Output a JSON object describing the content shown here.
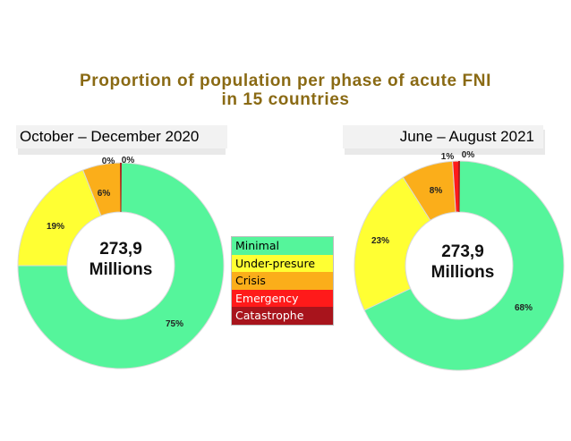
{
  "title_line1": "Proportion of population per phase of acute FNI",
  "title_line2": "in 15 countries",
  "legend": [
    {
      "name": "Minimal",
      "color": "#55f59b",
      "text_color": "#000000"
    },
    {
      "name": "Under-presure",
      "color": "#ffff33",
      "text_color": "#000000"
    },
    {
      "name": "Crisis",
      "color": "#fbae1a",
      "text_color": "#000000"
    },
    {
      "name": "Emergency",
      "color": "#ff1a1a",
      "text_color": "#ffffff"
    },
    {
      "name": "Catastrophe",
      "color": "#a8141c",
      "text_color": "#ffffff"
    }
  ],
  "chart_data": [
    {
      "type": "pie",
      "title": "October – December 2020",
      "center_label_line1": "273,9",
      "center_label_line2": "Millions",
      "categories": [
        "Minimal",
        "Under-presure",
        "Crisis",
        "Emergency",
        "Catastrophe"
      ],
      "values": [
        75,
        19,
        6,
        0,
        0
      ],
      "labels": [
        "75%",
        "19%",
        "6%",
        "0%",
        "0%"
      ]
    },
    {
      "type": "pie",
      "title": "June – August 2021",
      "center_label_line1": "273,9",
      "center_label_line2": "Millions",
      "categories": [
        "Minimal",
        "Under-presure",
        "Crisis",
        "Emergency",
        "Catastrophe"
      ],
      "values": [
        68,
        23,
        8,
        1,
        0
      ],
      "labels": [
        "68%",
        "23%",
        "8%",
        "1%",
        "0%"
      ]
    }
  ]
}
